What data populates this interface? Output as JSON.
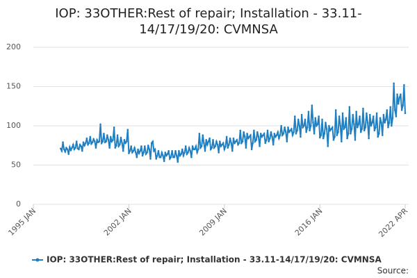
{
  "chart_data": {
    "type": "line",
    "title": "IOP: 33OTHER:Rest of repair; Installation - 33.11-14/17/19/20: CVMNSA",
    "source": "Source:",
    "x": [
      "1997-01",
      "1997-02",
      "1997-03",
      "1997-04",
      "1997-05",
      "1997-06",
      "1997-07",
      "1997-08",
      "1997-09",
      "1997-10",
      "1997-11",
      "1997-12",
      "1998-01",
      "1998-02",
      "1998-03",
      "1998-04",
      "1998-05",
      "1998-06",
      "1998-07",
      "1998-08",
      "1998-09",
      "1998-10",
      "1998-11",
      "1998-12",
      "1999-01",
      "1999-02",
      "1999-03",
      "1999-04",
      "1999-05",
      "1999-06",
      "1999-07",
      "1999-08",
      "1999-09",
      "1999-10",
      "1999-11",
      "1999-12",
      "2000-01",
      "2000-02",
      "2000-03",
      "2000-04",
      "2000-05",
      "2000-06",
      "2000-07",
      "2000-08",
      "2000-09",
      "2000-10",
      "2000-11",
      "2000-12",
      "2001-01",
      "2001-02",
      "2001-03",
      "2001-04",
      "2001-05",
      "2001-06",
      "2001-07",
      "2001-08",
      "2001-09",
      "2001-10",
      "2001-11",
      "2001-12",
      "2002-01",
      "2002-02",
      "2002-03",
      "2002-04",
      "2002-05",
      "2002-06",
      "2002-07",
      "2002-08",
      "2002-09",
      "2002-10",
      "2002-11",
      "2002-12",
      "2003-01",
      "2003-02",
      "2003-03",
      "2003-04",
      "2003-05",
      "2003-06",
      "2003-07",
      "2003-08",
      "2003-09",
      "2003-10",
      "2003-11",
      "2003-12",
      "2004-01",
      "2004-02",
      "2004-03",
      "2004-04",
      "2004-05",
      "2004-06",
      "2004-07",
      "2004-08",
      "2004-09",
      "2004-10",
      "2004-11",
      "2004-12",
      "2005-01",
      "2005-02",
      "2005-03",
      "2005-04",
      "2005-05",
      "2005-06",
      "2005-07",
      "2005-08",
      "2005-09",
      "2005-10",
      "2005-11",
      "2005-12",
      "2006-01",
      "2006-02",
      "2006-03",
      "2006-04",
      "2006-05",
      "2006-06",
      "2006-07",
      "2006-08",
      "2006-09",
      "2006-10",
      "2006-11",
      "2006-12",
      "2007-01",
      "2007-02",
      "2007-03",
      "2007-04",
      "2007-05",
      "2007-06",
      "2007-07",
      "2007-08",
      "2007-09",
      "2007-10",
      "2007-11",
      "2007-12",
      "2008-01",
      "2008-02",
      "2008-03",
      "2008-04",
      "2008-05",
      "2008-06",
      "2008-07",
      "2008-08",
      "2008-09",
      "2008-10",
      "2008-11",
      "2008-12",
      "2009-01",
      "2009-02",
      "2009-03",
      "2009-04",
      "2009-05",
      "2009-06",
      "2009-07",
      "2009-08",
      "2009-09",
      "2009-10",
      "2009-11",
      "2009-12",
      "2010-01",
      "2010-02",
      "2010-03",
      "2010-04",
      "2010-05",
      "2010-06",
      "2010-07",
      "2010-08",
      "2010-09",
      "2010-10",
      "2010-11",
      "2010-12",
      "2011-01",
      "2011-02",
      "2011-03",
      "2011-04",
      "2011-05",
      "2011-06",
      "2011-07",
      "2011-08",
      "2011-09",
      "2011-10",
      "2011-11",
      "2011-12",
      "2012-01",
      "2012-02",
      "2012-03",
      "2012-04",
      "2012-05",
      "2012-06",
      "2012-07",
      "2012-08",
      "2012-09",
      "2012-10",
      "2012-11",
      "2012-12",
      "2013-01",
      "2013-02",
      "2013-03",
      "2013-04",
      "2013-05",
      "2013-06",
      "2013-07",
      "2013-08",
      "2013-09",
      "2013-10",
      "2013-11",
      "2013-12",
      "2014-01",
      "2014-02",
      "2014-03",
      "2014-04",
      "2014-05",
      "2014-06",
      "2014-07",
      "2014-08",
      "2014-09",
      "2014-10",
      "2014-11",
      "2014-12",
      "2015-01",
      "2015-02",
      "2015-03",
      "2015-04",
      "2015-05",
      "2015-06",
      "2015-07",
      "2015-08",
      "2015-09",
      "2015-10",
      "2015-11",
      "2015-12",
      "2016-01",
      "2016-02",
      "2016-03",
      "2016-04",
      "2016-05",
      "2016-06",
      "2016-07",
      "2016-08",
      "2016-09",
      "2016-10",
      "2016-11",
      "2016-12",
      "2017-01",
      "2017-02",
      "2017-03",
      "2017-04",
      "2017-05",
      "2017-06",
      "2017-07",
      "2017-08",
      "2017-09",
      "2017-10",
      "2017-11",
      "2017-12",
      "2018-01",
      "2018-02",
      "2018-03",
      "2018-04",
      "2018-05",
      "2018-06",
      "2018-07",
      "2018-08",
      "2018-09",
      "2018-10",
      "2018-11",
      "2018-12",
      "2019-01",
      "2019-02",
      "2019-03",
      "2019-04",
      "2019-05",
      "2019-06",
      "2019-07",
      "2019-08",
      "2019-09",
      "2019-10",
      "2019-11",
      "2019-12",
      "2020-01",
      "2020-02",
      "2020-03",
      "2020-04",
      "2020-05",
      "2020-06",
      "2020-07",
      "2020-08",
      "2020-09",
      "2020-10",
      "2020-11",
      "2020-12",
      "2021-01",
      "2021-02",
      "2021-03",
      "2021-04",
      "2021-05",
      "2021-06",
      "2021-07",
      "2021-08",
      "2021-09",
      "2021-10",
      "2021-11",
      "2021-12",
      "2022-01",
      "2022-02",
      "2022-03",
      "2022-04"
    ],
    "series": [
      {
        "name": "IOP: 33OTHER:Rest of repair; Installation - 33.11-14/17/19/20: CVMNSA",
        "color": "#1f7fc1",
        "values": [
          71,
          68,
          79,
          70,
          67,
          72,
          70,
          64,
          73,
          69,
          72,
          76,
          70,
          72,
          80,
          71,
          70,
          76,
          74,
          68,
          79,
          75,
          78,
          84,
          76,
          78,
          86,
          77,
          79,
          83,
          80,
          72,
          82,
          79,
          80,
          102,
          78,
          80,
          90,
          79,
          80,
          88,
          82,
          72,
          86,
          80,
          82,
          98,
          72,
          75,
          88,
          74,
          76,
          85,
          78,
          68,
          82,
          78,
          80,
          95,
          65,
          68,
          74,
          66,
          68,
          72,
          66,
          60,
          70,
          65,
          68,
          74,
          62,
          66,
          74,
          64,
          66,
          75,
          70,
          58,
          78,
          80,
          68,
          70,
          58,
          62,
          68,
          60,
          60,
          66,
          62,
          55,
          66,
          62,
          64,
          68,
          58,
          60,
          68,
          60,
          60,
          68,
          62,
          54,
          68,
          62,
          64,
          70,
          62,
          66,
          74,
          64,
          66,
          72,
          68,
          60,
          74,
          70,
          70,
          74,
          66,
          70,
          90,
          72,
          74,
          88,
          78,
          68,
          82,
          76,
          80,
          84,
          70,
          72,
          82,
          72,
          74,
          80,
          76,
          66,
          80,
          74,
          76,
          78,
          70,
          74,
          86,
          72,
          76,
          84,
          78,
          68,
          84,
          78,
          80,
          82,
          76,
          78,
          94,
          78,
          80,
          92,
          86,
          72,
          90,
          84,
          86,
          88,
          70,
          78,
          94,
          80,
          82,
          92,
          86,
          74,
          90,
          86,
          88,
          90,
          78,
          82,
          94,
          80,
          84,
          92,
          86,
          76,
          90,
          86,
          88,
          92,
          84,
          88,
          100,
          88,
          90,
          98,
          92,
          80,
          98,
          92,
          94,
          96,
          88,
          92,
          112,
          90,
          94,
          108,
          100,
          86,
          114,
          98,
          100,
          108,
          92,
          98,
          118,
          94,
          100,
          126,
          104,
          90,
          110,
          100,
          102,
          112,
          85,
          88,
          108,
          84,
          90,
          104,
          96,
          74,
          100,
          94,
          96,
          98,
          82,
          86,
          120,
          88,
          92,
          112,
          100,
          80,
          116,
          96,
          98,
          110,
          84,
          90,
          124,
          90,
          96,
          114,
          102,
          82,
          118,
          98,
          102,
          112,
          92,
          96,
          122,
          94,
          98,
          116,
          104,
          84,
          114,
          100,
          104,
          112,
          94,
          98,
          116,
          86,
          90,
          110,
          104,
          88,
          114,
          104,
          108,
          120,
          98,
          104,
          124,
          100,
          110,
          154,
          120,
          112,
          140,
          128,
          136,
          140,
          120,
          126,
          152,
          116
        ]
      }
    ],
    "xlim": [
      "1995-01",
      "2022-04"
    ],
    "xticks": [
      {
        "value": "1995-01",
        "label": "1995 JAN"
      },
      {
        "value": "2002-01",
        "label": "2002 JAN"
      },
      {
        "value": "2009-01",
        "label": "2009 JAN"
      },
      {
        "value": "2016-01",
        "label": "2016 JAN"
      },
      {
        "value": "2022-04",
        "label": "2022 APR"
      }
    ],
    "ylim": [
      0,
      200
    ],
    "yticks": [
      0,
      50,
      100,
      150,
      200
    ],
    "grid": true
  }
}
